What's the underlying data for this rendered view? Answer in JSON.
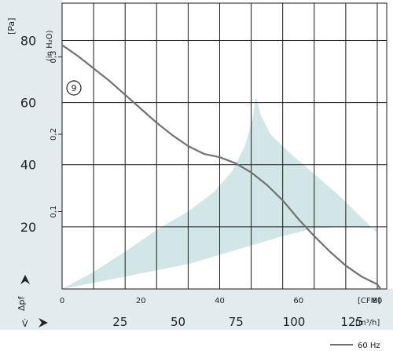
{
  "chart_data": {
    "type": "line",
    "x_axis": {
      "label": "[CFM]",
      "range": [
        0,
        75
      ],
      "ticks": [
        0,
        20,
        40,
        60,
        80
      ]
    },
    "x_axis_secondary": {
      "label_prefix": "V̇",
      "unit": "[m³/h]",
      "ticks": [
        "25",
        "50",
        "75",
        "100",
        "125"
      ]
    },
    "y_axis": {
      "label": "Δpf",
      "unit": "[Pa]",
      "range": [
        0,
        92
      ],
      "ticks": [
        20,
        40,
        60,
        80
      ]
    },
    "y_axis_secondary": {
      "unit": "(in H₂O)",
      "ticks": [
        "0,1",
        "0,2",
        "0,3"
      ]
    },
    "grid": true,
    "series": [
      {
        "name": "60 Hz",
        "color": "#6f7172",
        "x": [
          0,
          5,
          10,
          15,
          20,
          25,
          30,
          35,
          40,
          45,
          50,
          55,
          60,
          65,
          70,
          75,
          80,
          85,
          90,
          95,
          100,
          101
        ],
        "y": [
          78.5,
          75,
          71,
          67,
          62.5,
          58,
          53.5,
          49.5,
          46,
          43.5,
          42.4,
          40.5,
          37.5,
          33.5,
          28.5,
          22.5,
          17,
          12,
          7.5,
          4,
          1.5,
          0
        ]
      }
    ],
    "annotations": [
      {
        "text": "9",
        "x": 4,
        "y": 70
      }
    ],
    "shaded_region_color": "#d2e6e8",
    "legend": {
      "position": "bottom-right"
    }
  }
}
